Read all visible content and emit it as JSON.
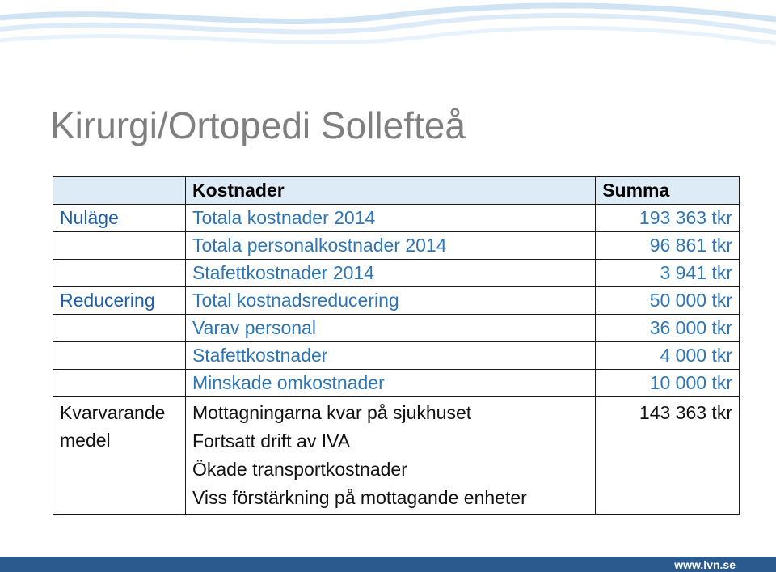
{
  "slide": {
    "title": "Kirurgi/Ortopedi Sollefteå",
    "website": "www.lvn.se"
  },
  "table": {
    "headers": {
      "category": "",
      "cost": "Kostnader",
      "sum": "Summa"
    },
    "rows": [
      {
        "category": "Nuläge",
        "cost": "Totala kostnader 2014",
        "sum": "193 363 tkr"
      },
      {
        "category": "",
        "cost": "Totala personalkostnader 2014",
        "sum": "96 861 tkr"
      },
      {
        "category": "",
        "cost": "Stafettkostnader 2014",
        "sum": "3 941 tkr"
      },
      {
        "category": "Reducering",
        "cost": "Total kostnadsreducering",
        "sum": "50 000 tkr"
      },
      {
        "category": "",
        "cost": "Varav personal",
        "sum": "36 000 tkr"
      },
      {
        "category": "",
        "cost": "Stafettkostnader",
        "sum": "4 000 tkr"
      },
      {
        "category": "",
        "cost": "Minskade omkostnader",
        "sum": "10 000 tkr"
      }
    ],
    "remaining": {
      "category_line1": "Kvarvarande",
      "category_line2": "medel",
      "items": [
        "Mottagningarna kvar på sjukhuset",
        "Fortsatt drift av IVA",
        "Ökade transportkostnader",
        "Viss förstärkning på mottagande enheter"
      ],
      "sum": "143 363 tkr"
    }
  },
  "colors": {
    "header_bg": "#ddebf7",
    "label_blue": "#1f5fa8",
    "value_blue": "#2e75b6",
    "bottom_bar": "#2b5a8e"
  }
}
